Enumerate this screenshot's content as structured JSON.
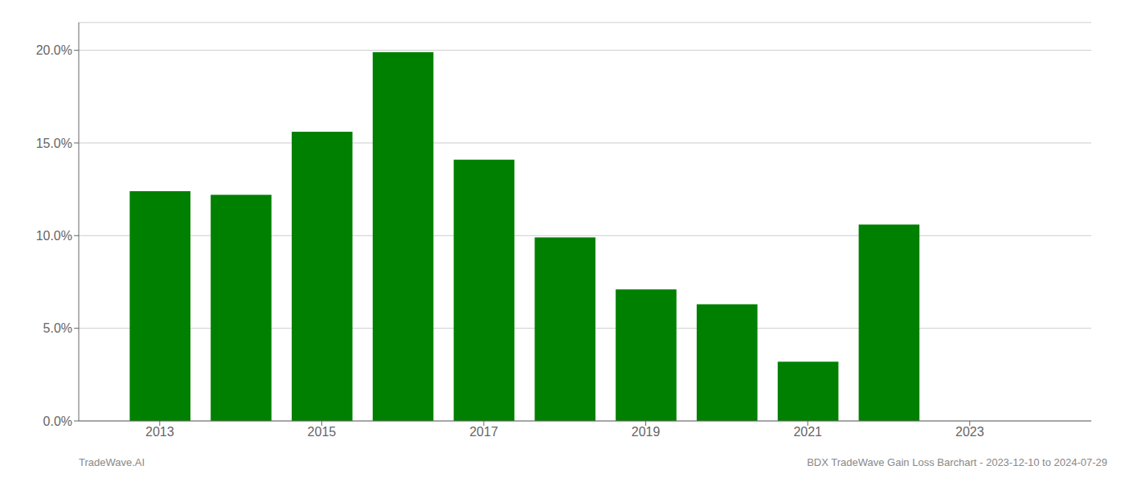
{
  "chart_data": {
    "type": "bar",
    "x": [
      2013,
      2014,
      2015,
      2016,
      2017,
      2018,
      2019,
      2020,
      2021,
      2022
    ],
    "values": [
      0.124,
      0.122,
      0.156,
      0.199,
      0.141,
      0.099,
      0.071,
      0.063,
      0.032,
      0.106
    ],
    "color": "#008000",
    "xlim": [
      2012,
      2024.5
    ],
    "xticks": [
      2013,
      2015,
      2017,
      2019,
      2021,
      2023
    ],
    "ylim": [
      0,
      0.215
    ],
    "yticks": [
      {
        "value": 0.0,
        "label": "0.0%"
      },
      {
        "value": 0.05,
        "label": "5.0%"
      },
      {
        "value": 0.1,
        "label": "10.0%"
      },
      {
        "value": 0.15,
        "label": "15.0%"
      },
      {
        "value": 0.2,
        "label": "20.0%"
      }
    ],
    "grid": true,
    "annotations": [
      "TradeWave.AI",
      "BDX TradeWave Gain Loss Barchart - 2023-12-10 to 2024-07-29"
    ]
  }
}
